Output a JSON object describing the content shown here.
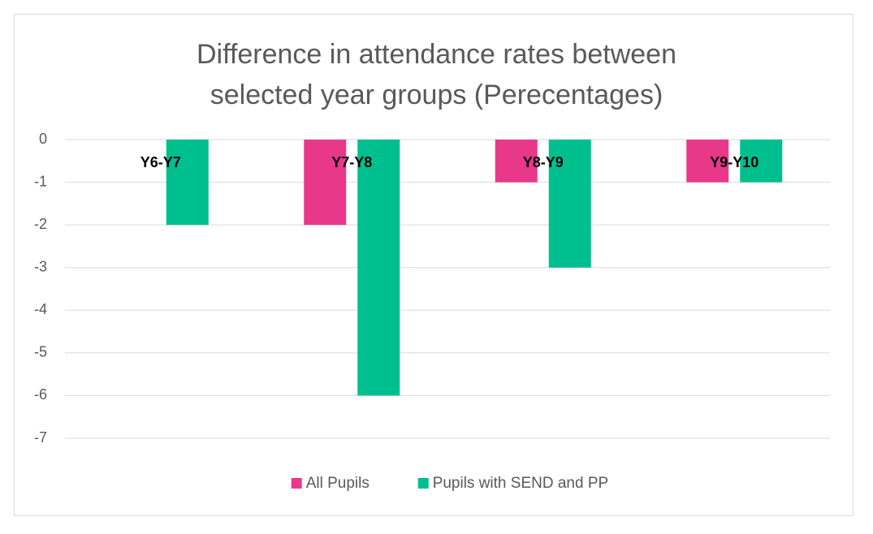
{
  "chart_data": {
    "type": "bar",
    "title": "Difference in attendance rates between selected year groups (Perecentages)",
    "categories": [
      "Y6-Y7",
      "Y7-Y8",
      "Y8-Y9",
      "Y9-Y10"
    ],
    "series": [
      {
        "name": "All Pupils",
        "color": "#e8388a",
        "values": [
          0,
          -2,
          -1,
          -1
        ]
      },
      {
        "name": "Pupils with SEND and PP",
        "color": "#00bf8f",
        "values": [
          -2,
          -6,
          -3,
          -1
        ]
      }
    ],
    "ylim": [
      -7,
      0
    ],
    "yticks": [
      0,
      -1,
      -2,
      -3,
      -4,
      -5,
      -6,
      -7
    ],
    "grid": true,
    "legend": "bottom"
  }
}
